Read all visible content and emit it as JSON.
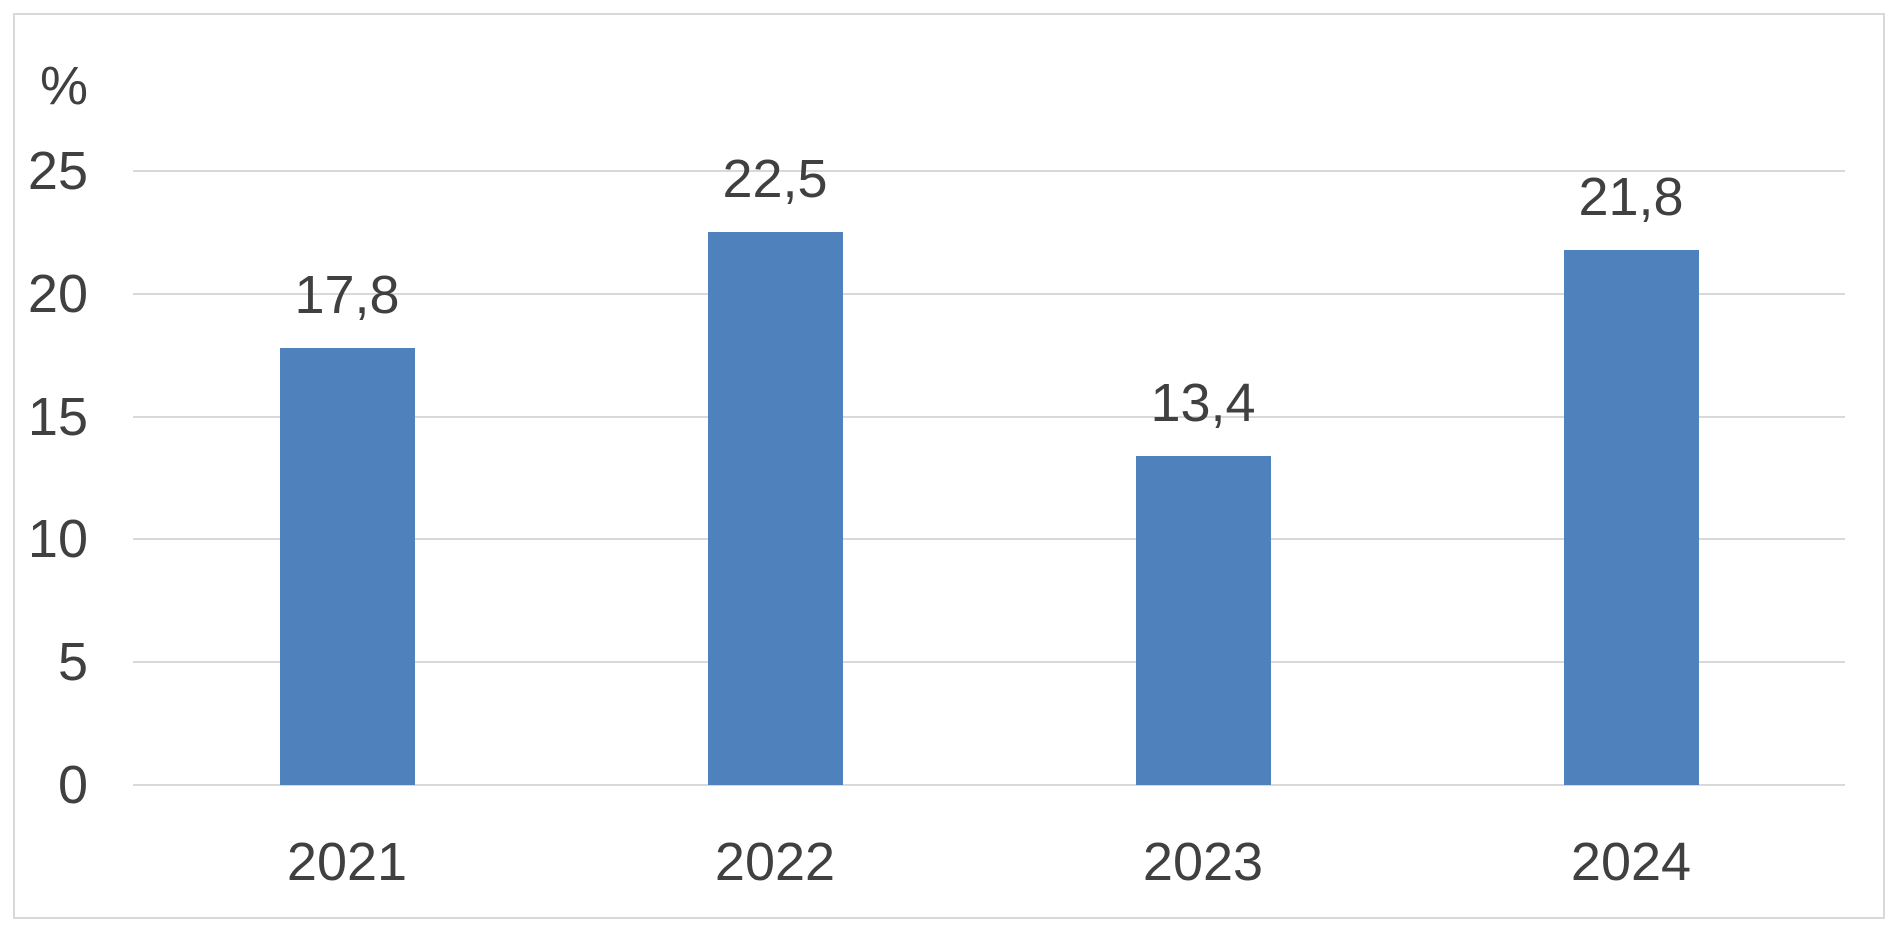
{
  "chart_data": {
    "type": "bar",
    "title": "",
    "xlabel": "",
    "ylabel": "%",
    "categories": [
      "2021",
      "2022",
      "2023",
      "2024"
    ],
    "values": [
      17.8,
      22.5,
      13.4,
      21.8
    ],
    "value_labels": [
      "17,8",
      "22,5",
      "13,4",
      "21,8"
    ],
    "y_ticks": [
      0,
      5,
      10,
      15,
      20,
      25
    ],
    "y_tick_labels": [
      "0",
      "5",
      "10",
      "15",
      "20",
      "25"
    ],
    "ylim": [
      0,
      25
    ],
    "grid": "horizontal",
    "legend": "none",
    "decimal_separator": ",",
    "colors": {
      "bar": "#4f81bd",
      "gridline": "#d9d9d9",
      "border": "#d9d9d9",
      "text": "#404040",
      "background": "#ffffff"
    }
  }
}
